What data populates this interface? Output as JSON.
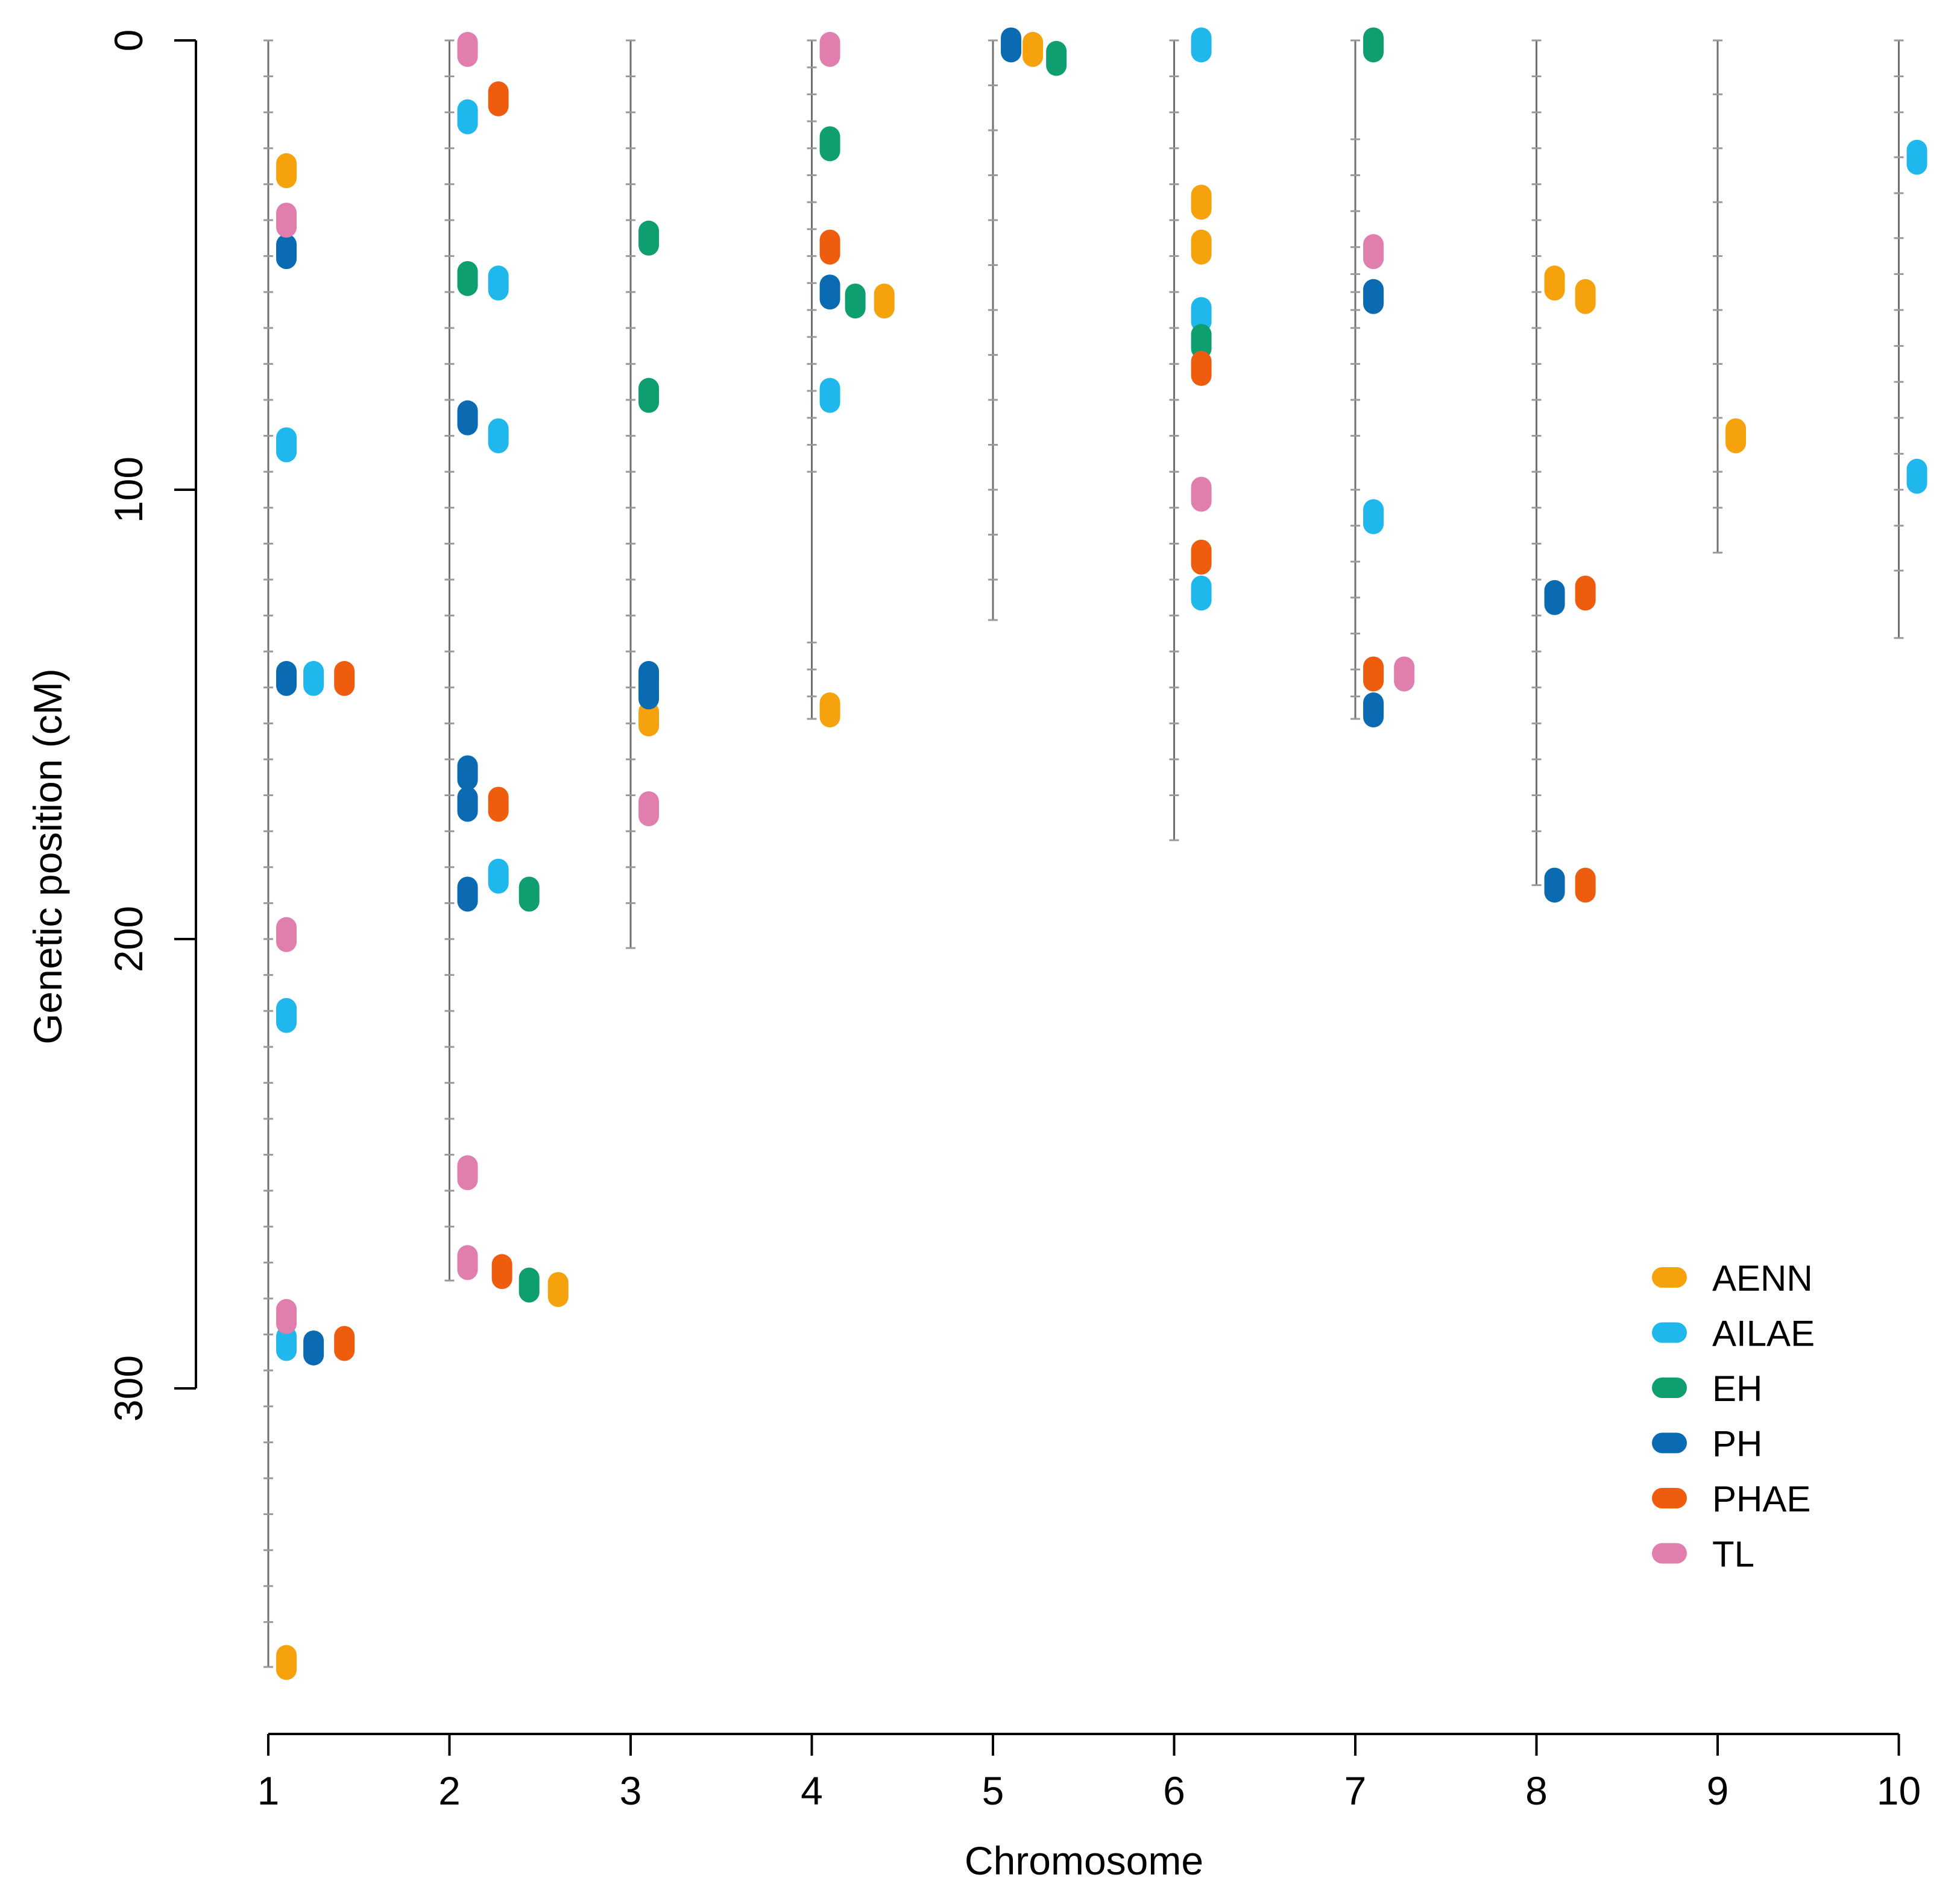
{
  "chart_data": {
    "type": "scatter",
    "title": "",
    "xlabel": "Chromosome",
    "ylabel": "Genetic position (cM)",
    "categories": [
      "1",
      "2",
      "3",
      "4",
      "5",
      "6",
      "7",
      "8",
      "9",
      "10"
    ],
    "x_ticks": [
      1,
      2,
      3,
      4,
      5,
      6,
      7,
      8,
      9,
      10
    ],
    "x_tick_labels": [
      "1",
      "2",
      "3",
      "4",
      "5",
      "6",
      "7",
      "8",
      "9",
      "10"
    ],
    "ylim": [
      0,
      380
    ],
    "y_inverted": true,
    "y_ticks": [
      0,
      100,
      200,
      300
    ],
    "y_tick_labels": [
      "0",
      "100",
      "200",
      "300"
    ],
    "grid": false,
    "legend_position": "bottom-right",
    "chromosome_lengths": [
      362,
      276,
      202,
      151,
      129,
      178,
      151,
      188,
      114,
      133
    ],
    "marker_positions": [
      [
        0,
        8,
        16,
        24,
        32,
        40,
        48,
        56,
        64,
        72,
        80,
        88,
        96,
        104,
        112,
        120,
        128,
        136,
        144,
        152,
        160,
        168,
        176,
        184,
        192,
        200,
        208,
        216,
        224,
        232,
        240,
        248,
        256,
        264,
        272,
        280,
        288,
        296,
        304,
        312,
        320,
        328,
        336,
        344,
        352,
        362
      ],
      [
        0,
        8,
        16,
        24,
        32,
        40,
        48,
        56,
        64,
        72,
        80,
        88,
        96,
        104,
        112,
        120,
        128,
        136,
        144,
        152,
        160,
        168,
        176,
        184,
        192,
        200,
        208,
        216,
        224,
        232,
        240,
        248,
        256,
        264,
        276
      ],
      [
        0,
        8,
        16,
        24,
        32,
        40,
        48,
        56,
        64,
        72,
        80,
        88,
        96,
        104,
        112,
        120,
        128,
        136,
        144,
        152,
        160,
        168,
        176,
        184,
        192,
        202
      ],
      [
        0,
        6,
        12,
        18,
        24,
        30,
        36,
        42,
        48,
        54,
        60,
        66,
        72,
        78,
        84,
        90,
        96,
        134,
        140,
        146,
        151
      ],
      [
        0,
        10,
        20,
        30,
        40,
        50,
        60,
        70,
        80,
        90,
        100,
        110,
        120,
        129
      ],
      [
        0,
        8,
        16,
        24,
        32,
        40,
        48,
        56,
        64,
        72,
        80,
        88,
        96,
        104,
        112,
        120,
        128,
        136,
        144,
        152,
        160,
        168,
        178
      ],
      [
        0,
        22,
        30,
        38,
        46,
        52,
        56,
        60,
        64,
        72,
        80,
        88,
        100,
        108,
        116,
        124,
        132,
        140,
        146,
        151
      ],
      [
        0,
        8,
        16,
        24,
        32,
        40,
        48,
        56,
        64,
        72,
        80,
        88,
        96,
        104,
        112,
        120,
        128,
        136,
        144,
        152,
        160,
        168,
        176,
        188
      ],
      [
        0,
        12,
        24,
        36,
        48,
        60,
        72,
        84,
        96,
        104,
        114
      ],
      [
        0,
        8,
        16,
        26,
        34,
        44,
        52,
        60,
        68,
        76,
        84,
        92,
        100,
        108,
        118,
        133
      ]
    ],
    "series": [
      {
        "name": "AENN",
        "color": "#F5A20C",
        "points": [
          {
            "chr": 1,
            "offset": 0.1,
            "pos": 29
          },
          {
            "chr": 1,
            "offset": 0.1,
            "pos": 361
          },
          {
            "chr": 2,
            "offset": 0.6,
            "pos": 278
          },
          {
            "chr": 3,
            "offset": 0.1,
            "pos": 151
          },
          {
            "chr": 4,
            "offset": 0.4,
            "pos": 58
          },
          {
            "chr": 4,
            "offset": 0.1,
            "pos": 149
          },
          {
            "chr": 5,
            "offset": 0.22,
            "pos": 2
          },
          {
            "chr": 6,
            "offset": 0.15,
            "pos": 36
          },
          {
            "chr": 6,
            "offset": 0.15,
            "pos": 46
          },
          {
            "chr": 8,
            "offset": 0.1,
            "pos": 54
          },
          {
            "chr": 8,
            "offset": 0.27,
            "pos": 57
          },
          {
            "chr": 9,
            "offset": 0.1,
            "pos": 88
          }
        ]
      },
      {
        "name": "AILAE",
        "color": "#1FB7EC",
        "points": [
          {
            "chr": 1,
            "offset": 0.1,
            "pos": 90
          },
          {
            "chr": 1,
            "offset": 0.25,
            "pos": 142
          },
          {
            "chr": 1,
            "offset": 0.1,
            "pos": 217
          },
          {
            "chr": 1,
            "offset": 0.1,
            "pos": 290
          },
          {
            "chr": 2,
            "offset": 0.1,
            "pos": 17
          },
          {
            "chr": 2,
            "offset": 0.27,
            "pos": 54
          },
          {
            "chr": 2,
            "offset": 0.27,
            "pos": 88
          },
          {
            "chr": 2,
            "offset": 0.27,
            "pos": 186
          },
          {
            "chr": 4,
            "offset": 0.1,
            "pos": 79
          },
          {
            "chr": 6,
            "offset": 0.15,
            "pos": 1
          },
          {
            "chr": 6,
            "offset": 0.15,
            "pos": 61
          },
          {
            "chr": 6,
            "offset": 0.15,
            "pos": 123
          },
          {
            "chr": 7,
            "offset": 0.1,
            "pos": 106
          },
          {
            "chr": 10,
            "offset": 0.1,
            "pos": 26
          },
          {
            "chr": 10,
            "offset": 0.1,
            "pos": 97
          }
        ]
      },
      {
        "name": "EH",
        "color": "#0E9E6F",
        "points": [
          {
            "chr": 2,
            "offset": 0.1,
            "pos": 53
          },
          {
            "chr": 2,
            "offset": 0.44,
            "pos": 190
          },
          {
            "chr": 2,
            "offset": 0.44,
            "pos": 277
          },
          {
            "chr": 3,
            "offset": 0.1,
            "pos": 44
          },
          {
            "chr": 3,
            "offset": 0.1,
            "pos": 79
          },
          {
            "chr": 4,
            "offset": 0.1,
            "pos": 23
          },
          {
            "chr": 4,
            "offset": 0.24,
            "pos": 58
          },
          {
            "chr": 5,
            "offset": 0.35,
            "pos": 4
          },
          {
            "chr": 6,
            "offset": 0.15,
            "pos": 67
          },
          {
            "chr": 7,
            "offset": 0.1,
            "pos": 1
          }
        ]
      },
      {
        "name": "PH",
        "color": "#0A6BB3",
        "points": [
          {
            "chr": 1,
            "offset": 0.1,
            "pos": 47
          },
          {
            "chr": 1,
            "offset": 0.1,
            "pos": 142
          },
          {
            "chr": 1,
            "offset": 0.25,
            "pos": 291
          },
          {
            "chr": 2,
            "offset": 0.1,
            "pos": 84
          },
          {
            "chr": 2,
            "offset": 0.1,
            "pos": 163
          },
          {
            "chr": 2,
            "offset": 0.1,
            "pos": 170
          },
          {
            "chr": 2,
            "offset": 0.1,
            "pos": 190
          },
          {
            "chr": 3,
            "offset": 0.1,
            "pos": 142
          },
          {
            "chr": 3,
            "offset": 0.1,
            "pos": 145
          },
          {
            "chr": 4,
            "offset": 0.1,
            "pos": 56
          },
          {
            "chr": 5,
            "offset": 0.1,
            "pos": 1
          },
          {
            "chr": 7,
            "offset": 0.1,
            "pos": 57
          },
          {
            "chr": 7,
            "offset": 0.1,
            "pos": 149
          },
          {
            "chr": 8,
            "offset": 0.1,
            "pos": 124
          },
          {
            "chr": 8,
            "offset": 0.1,
            "pos": 188
          }
        ]
      },
      {
        "name": "PHAE",
        "color": "#EE5D0E",
        "points": [
          {
            "chr": 1,
            "offset": 0.42,
            "pos": 142
          },
          {
            "chr": 1,
            "offset": 0.42,
            "pos": 290
          },
          {
            "chr": 2,
            "offset": 0.27,
            "pos": 13
          },
          {
            "chr": 2,
            "offset": 0.27,
            "pos": 170
          },
          {
            "chr": 2,
            "offset": 0.29,
            "pos": 274
          },
          {
            "chr": 4,
            "offset": 0.1,
            "pos": 46
          },
          {
            "chr": 6,
            "offset": 0.15,
            "pos": 73
          },
          {
            "chr": 6,
            "offset": 0.15,
            "pos": 115
          },
          {
            "chr": 7,
            "offset": 0.1,
            "pos": 141
          },
          {
            "chr": 8,
            "offset": 0.27,
            "pos": 123
          },
          {
            "chr": 8,
            "offset": 0.27,
            "pos": 188
          }
        ]
      },
      {
        "name": "TL",
        "color": "#E07FAE",
        "points": [
          {
            "chr": 1,
            "offset": 0.1,
            "pos": 40
          },
          {
            "chr": 1,
            "offset": 0.1,
            "pos": 199
          },
          {
            "chr": 1,
            "offset": 0.1,
            "pos": 284
          },
          {
            "chr": 2,
            "offset": 0.1,
            "pos": 2
          },
          {
            "chr": 2,
            "offset": 0.1,
            "pos": 252
          },
          {
            "chr": 2,
            "offset": 0.1,
            "pos": 272
          },
          {
            "chr": 3,
            "offset": 0.1,
            "pos": 171
          },
          {
            "chr": 4,
            "offset": 0.1,
            "pos": 2
          },
          {
            "chr": 6,
            "offset": 0.15,
            "pos": 101
          },
          {
            "chr": 7,
            "offset": 0.1,
            "pos": 47
          },
          {
            "chr": 7,
            "offset": 0.27,
            "pos": 141
          }
        ]
      }
    ]
  }
}
